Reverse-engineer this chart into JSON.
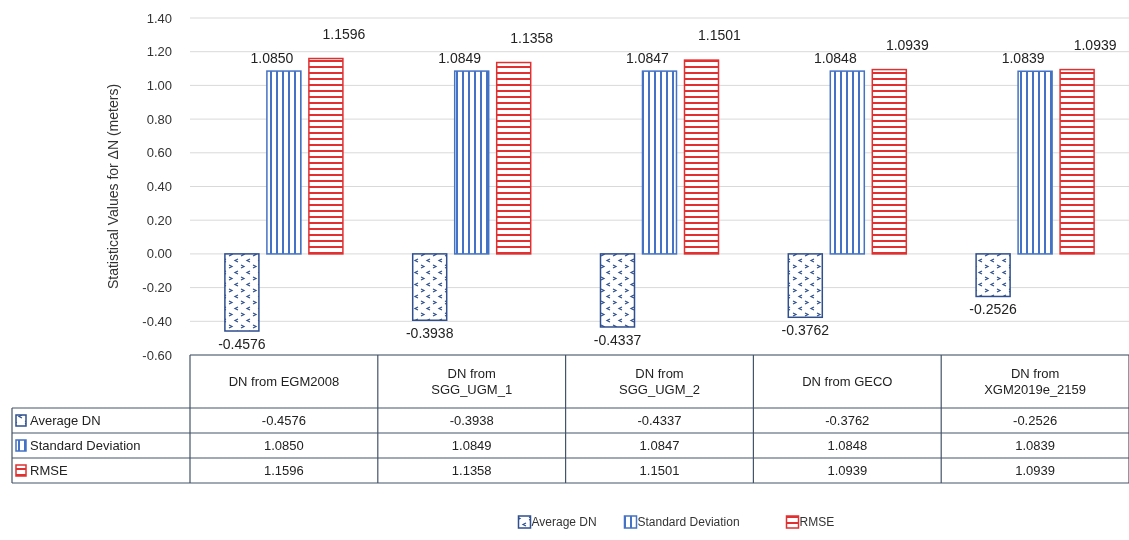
{
  "chart_data": {
    "type": "bar",
    "ylabel": "Statistical Values for ΔN (meters)",
    "categories": [
      "DN from EGM2008",
      "DN from SGG_UGM_1",
      "DN from SGG_UGM_2",
      "DN from GECO",
      "DN from XGM2019e_2159"
    ],
    "series": [
      {
        "name": "Average DN",
        "color": "#2f4f8f",
        "values": [
          -0.4576,
          -0.3938,
          -0.4337,
          -0.3762,
          -0.2526
        ]
      },
      {
        "name": "Standard Deviation",
        "color": "#4472c4",
        "values": [
          1.085,
          1.0849,
          1.0847,
          1.0848,
          1.0839
        ]
      },
      {
        "name": "RMSE",
        "color": "#e03030",
        "values": [
          1.1596,
          1.1358,
          1.1501,
          1.0939,
          1.0939
        ]
      }
    ],
    "value_labels": [
      [
        "-0.4576",
        "-0.3938",
        "-0.4337",
        "-0.3762",
        "-0.2526"
      ],
      [
        "1.0850",
        "1.0849",
        "1.0847",
        "1.0848",
        "1.0839"
      ],
      [
        "1.1596",
        "1.1358",
        "1.1501",
        "1.0939",
        "1.0939"
      ]
    ],
    "ylim": [
      -0.6,
      1.4
    ],
    "yticks": [
      {
        "value": -0.6,
        "label": "-0.60"
      },
      {
        "value": -0.4,
        "label": "-0.40"
      },
      {
        "value": -0.2,
        "label": "-0.20"
      },
      {
        "value": 0,
        "label": "0.00"
      },
      {
        "value": 0.2,
        "label": "0.20"
      },
      {
        "value": 0.4,
        "label": "0.40"
      },
      {
        "value": 0.6,
        "label": "0.60"
      },
      {
        "value": 0.8,
        "label": "0.80"
      },
      {
        "value": 1,
        "label": "1.00"
      },
      {
        "value": 1.2,
        "label": "1.20"
      },
      {
        "value": 1.4,
        "label": "1.40"
      }
    ],
    "grid": "y",
    "legend": "bottom"
  }
}
